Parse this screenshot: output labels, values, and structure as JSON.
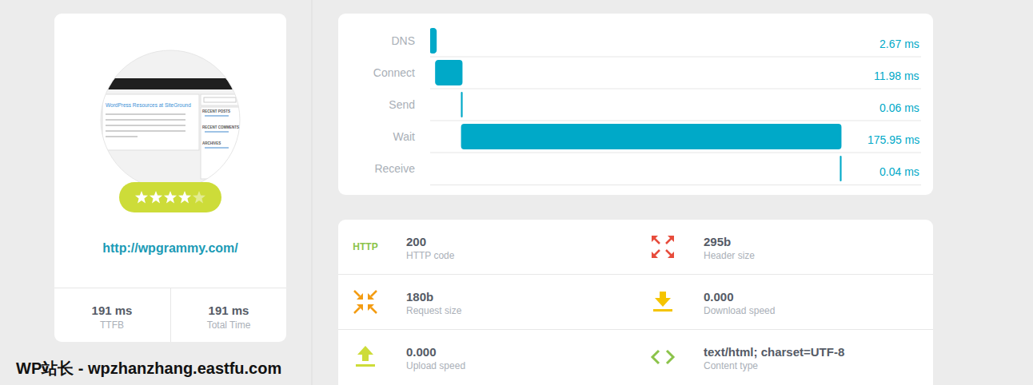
{
  "card": {
    "thumbnail_texts": {
      "title": "WordPress Resources at SiteGround",
      "sidebar": [
        "RECENT POSTS",
        "RECENT COMMENTS",
        "ARCHIVES"
      ]
    },
    "rating": 4,
    "rating_max": 5,
    "url": "http://wpgrammy.com/",
    "stats": [
      {
        "value": "191 ms",
        "label": "TTFB"
      },
      {
        "value": "191 ms",
        "label": "Total Time"
      }
    ]
  },
  "chart_data": {
    "type": "bar",
    "orientation": "horizontal",
    "stacked": true,
    "categories": [
      "DNS",
      "Connect",
      "Send",
      "Wait",
      "Receive"
    ],
    "values": [
      2.67,
      11.98,
      0.06,
      175.95,
      0.04
    ],
    "value_labels": [
      "2.67 ms",
      "11.98 ms",
      "0.06 ms",
      "175.95 ms",
      "0.04 ms"
    ],
    "data_labels": true,
    "color": "#00a9c8",
    "xlim": [
      0,
      228
    ],
    "xticks": [],
    "tick_labels": "y",
    "grid": false
  },
  "details": [
    {
      "icon_text": "HTTP",
      "value": "200",
      "label": "HTTP code"
    },
    {
      "value": "295b",
      "label": "Header size"
    },
    {
      "value": "180b",
      "label": "Request size"
    },
    {
      "value": "0.000",
      "label": "Download speed"
    },
    {
      "value": "0.000",
      "label": "Upload speed"
    },
    {
      "value": "text/html; charset=UTF-8",
      "label": "Content type"
    }
  ],
  "watermark": "WP站长 - wpzhanzhang.eastfu.com"
}
